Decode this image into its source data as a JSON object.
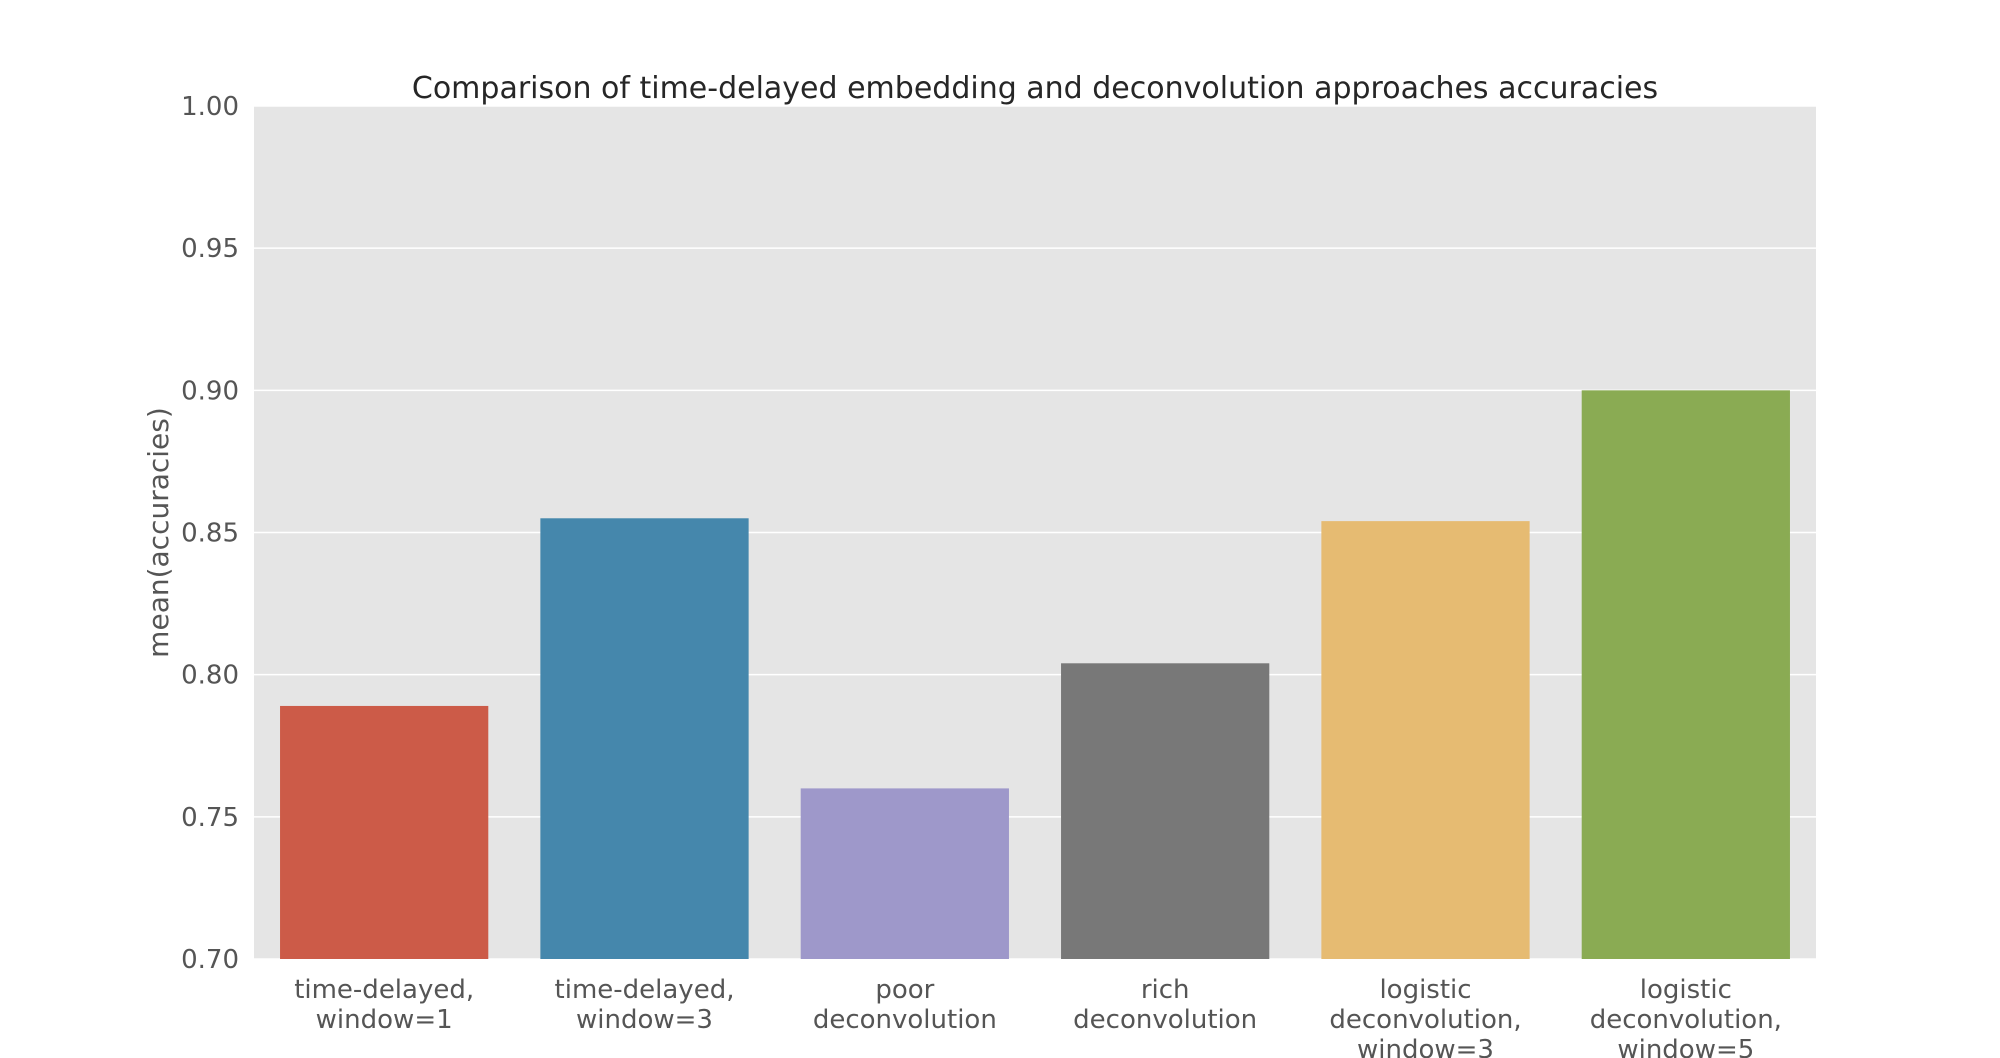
{
  "chart_data": {
    "type": "bar",
    "title": "Comparison of time-delayed embedding and deconvolution approaches accuracies",
    "xlabel": "",
    "ylabel": "mean(accuracies)",
    "ylim": [
      0.7,
      1.0
    ],
    "yticks": [
      "0.70",
      "0.75",
      "0.80",
      "0.85",
      "0.90",
      "0.95",
      "1.00"
    ],
    "grid": true,
    "legend": "none",
    "categories": [
      [
        "time-delayed,",
        "window=1"
      ],
      [
        "time-delayed,",
        "window=3"
      ],
      [
        "poor",
        "deconvolution"
      ],
      [
        "rich",
        "deconvolution"
      ],
      [
        "logistic",
        "deconvolution,",
        "window=3"
      ],
      [
        "logistic",
        "deconvolution,",
        "window=5"
      ]
    ],
    "values": [
      0.789,
      0.855,
      0.76,
      0.804,
      0.854,
      0.9
    ],
    "colors": [
      "#cc5b48",
      "#4587ac",
      "#9e98ca",
      "#787878",
      "#e6bb72",
      "#8aab53"
    ],
    "plot_background": "#e5e5e5",
    "grid_color": "#ffffff"
  }
}
